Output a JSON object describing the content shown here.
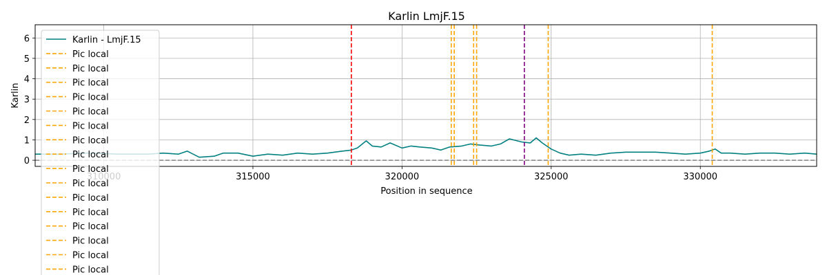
{
  "chart_data": {
    "type": "line",
    "title": "Karlin LmjF.15",
    "xlabel": "Position in sequence",
    "ylabel": "Karlin",
    "xlim": [
      307700,
      333900
    ],
    "ylim": [
      -0.3,
      6.65
    ],
    "xticks": [
      310000,
      315000,
      320000,
      325000,
      330000
    ],
    "yticks": [
      0,
      1,
      2,
      3,
      4,
      5,
      6
    ],
    "grid": true,
    "legend_placement": "upper-left",
    "baseline": {
      "y": 0,
      "color": "#808080",
      "style": "dashed"
    },
    "series": [
      {
        "name": "Karlin - LmjF.15",
        "color": "#008080",
        "x": [
          307700,
          308500,
          309500,
          310500,
          311500,
          312000,
          312500,
          312800,
          313200,
          313700,
          314000,
          314500,
          315000,
          315500,
          316000,
          316500,
          317000,
          317500,
          318000,
          318300,
          318500,
          318800,
          319000,
          319300,
          319600,
          320000,
          320300,
          320600,
          321000,
          321300,
          321600,
          322000,
          322300,
          322600,
          323000,
          323300,
          323600,
          324000,
          324300,
          324500,
          324700,
          325000,
          325300,
          325600,
          326000,
          326500,
          327000,
          327500,
          328000,
          328500,
          329000,
          329500,
          330000,
          330300,
          330500,
          330700,
          331000,
          331500,
          332000,
          332500,
          333000,
          333500,
          333900
        ],
        "values": [
          0.3,
          0.3,
          0.35,
          0.3,
          0.3,
          0.35,
          0.3,
          0.45,
          0.15,
          0.2,
          0.35,
          0.35,
          0.2,
          0.3,
          0.25,
          0.35,
          0.3,
          0.35,
          0.45,
          0.5,
          0.6,
          0.95,
          0.7,
          0.65,
          0.85,
          0.6,
          0.7,
          0.65,
          0.6,
          0.5,
          0.65,
          0.7,
          0.8,
          0.75,
          0.7,
          0.8,
          1.05,
          0.9,
          0.85,
          1.1,
          0.85,
          0.55,
          0.35,
          0.25,
          0.3,
          0.25,
          0.35,
          0.4,
          0.4,
          0.4,
          0.35,
          0.3,
          0.35,
          0.45,
          0.55,
          0.35,
          0.35,
          0.3,
          0.35,
          0.35,
          0.3,
          0.35,
          0.3
        ]
      }
    ],
    "vertical_lines": [
      {
        "x": 318300,
        "color": "#ff0000",
        "style": "dashed",
        "label": ""
      },
      {
        "x": 321650,
        "color": "#ffa500",
        "style": "dashed",
        "label": "Pic local"
      },
      {
        "x": 321750,
        "color": "#ffa500",
        "style": "dashed",
        "label": "Pic local"
      },
      {
        "x": 322400,
        "color": "#ffa500",
        "style": "dashed",
        "label": "Pic local"
      },
      {
        "x": 322500,
        "color": "#ffa500",
        "style": "dashed",
        "label": "Pic local"
      },
      {
        "x": 324100,
        "color": "#800080",
        "style": "dashed",
        "label": ""
      },
      {
        "x": 324900,
        "color": "#ffa500",
        "style": "dashed",
        "label": "Pic local"
      },
      {
        "x": 330400,
        "color": "#ffa500",
        "style": "dashed",
        "label": "Pic local"
      }
    ],
    "legend": [
      {
        "label": "Karlin - LmjF.15",
        "color": "#008080",
        "style": "solid"
      },
      {
        "label": "Pic local",
        "color": "#ffa500",
        "style": "dashed"
      },
      {
        "label": "Pic local",
        "color": "#ffa500",
        "style": "dashed"
      },
      {
        "label": "Pic local",
        "color": "#ffa500",
        "style": "dashed"
      },
      {
        "label": "Pic local",
        "color": "#ffa500",
        "style": "dashed"
      },
      {
        "label": "Pic local",
        "color": "#ffa500",
        "style": "dashed"
      },
      {
        "label": "Pic local",
        "color": "#ffa500",
        "style": "dashed"
      },
      {
        "label": "Pic local",
        "color": "#ffa500",
        "style": "dashed"
      },
      {
        "label": "Pic local",
        "color": "#ffa500",
        "style": "dashed"
      },
      {
        "label": "Pic local",
        "color": "#ffa500",
        "style": "dashed"
      },
      {
        "label": "Pic local",
        "color": "#ffa500",
        "style": "dashed"
      },
      {
        "label": "Pic local",
        "color": "#ffa500",
        "style": "dashed"
      },
      {
        "label": "Pic local",
        "color": "#ffa500",
        "style": "dashed"
      },
      {
        "label": "Pic local",
        "color": "#ffa500",
        "style": "dashed"
      },
      {
        "label": "Pic local",
        "color": "#ffa500",
        "style": "dashed"
      },
      {
        "label": "Pic local",
        "color": "#ffa500",
        "style": "dashed"
      },
      {
        "label": "Pic local",
        "color": "#ffa500",
        "style": "dashed"
      }
    ]
  }
}
